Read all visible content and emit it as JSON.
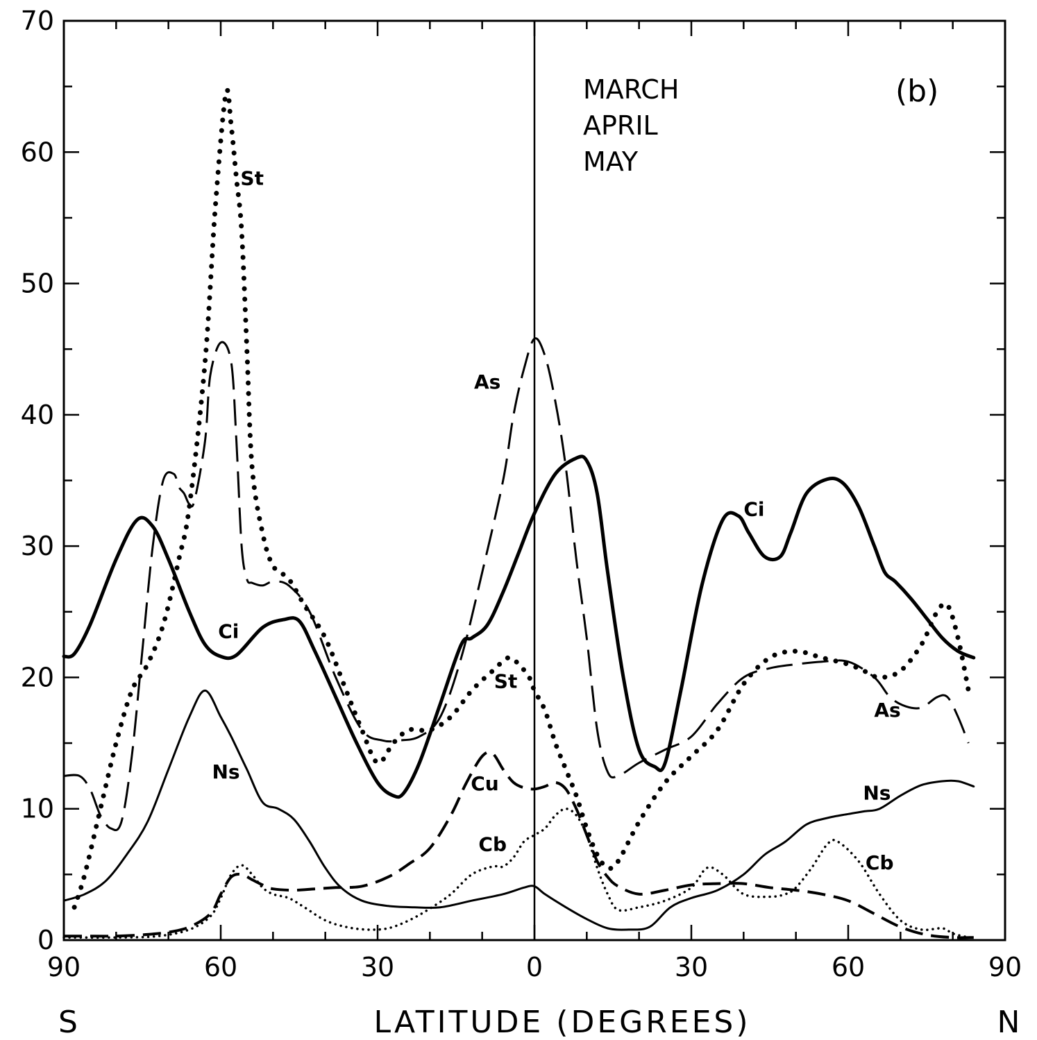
{
  "chart_data": {
    "type": "line",
    "panel_label": "(b)",
    "season": [
      "MARCH",
      "APRIL",
      "MAY"
    ],
    "xlabel": "LATITUDE (DEGREES)",
    "x_end_labels": {
      "left": "S",
      "right": "N"
    },
    "x_ticks": [
      -90,
      -60,
      -30,
      0,
      30,
      60,
      90
    ],
    "x_tick_labels": [
      "90",
      "60",
      "30",
      "0",
      "30",
      "60",
      "90"
    ],
    "y_ticks": [
      0,
      10,
      20,
      30,
      40,
      50,
      60,
      70
    ],
    "y_tick_labels": [
      "0",
      "10",
      "20",
      "30",
      "40",
      "50",
      "60",
      "70"
    ],
    "xlim": [
      -90,
      90
    ],
    "ylim": [
      0,
      70
    ],
    "reference_line_x": 0,
    "series": [
      {
        "name": "Ci",
        "style": "solid-thick",
        "x": [
          -90,
          -88,
          -85,
          -80,
          -76,
          -73,
          -70,
          -66,
          -63,
          -60,
          -57,
          -52,
          -48,
          -45,
          -42,
          -38,
          -34,
          -30,
          -27,
          -25,
          -22,
          -18,
          -14,
          -12,
          -9,
          -6,
          -3,
          0,
          4,
          8,
          10,
          12,
          14,
          17,
          20,
          23,
          25,
          28,
          32,
          36,
          39,
          41,
          44,
          47,
          49,
          52,
          56,
          59,
          62,
          65,
          67,
          69,
          72,
          75,
          78,
          81,
          84
        ],
        "y": [
          21.6,
          21.8,
          24,
          29,
          32,
          31.5,
          29,
          25,
          22.5,
          21.6,
          21.7,
          23.8,
          24.4,
          24.3,
          22,
          18.5,
          15,
          12,
          11,
          11.2,
          13.5,
          18,
          22.5,
          23,
          24,
          26.5,
          29.5,
          32.5,
          35.5,
          36.7,
          36.5,
          34,
          28,
          20,
          14.5,
          13.2,
          13.5,
          19,
          27,
          32,
          32.3,
          31,
          29.2,
          29.2,
          31,
          34,
          35.1,
          34.8,
          33,
          30,
          28,
          27.3,
          26,
          24.5,
          23,
          22,
          21.5
        ]
      },
      {
        "name": "St",
        "style": "dotted-heavy",
        "x": [
          -88,
          -86,
          -83,
          -80,
          -77,
          -74,
          -71,
          -68,
          -66,
          -63,
          -61,
          -59,
          -58,
          -57,
          -56,
          -55,
          -54,
          -52,
          -50,
          -47,
          -44,
          -40,
          -36,
          -33,
          -30,
          -27,
          -24,
          -20,
          -16,
          -12,
          -8,
          -5,
          -3,
          -1,
          0,
          2,
          4,
          6,
          8,
          10,
          12,
          14,
          16,
          20,
          25,
          30,
          35,
          40,
          45,
          50,
          55,
          60,
          63,
          66,
          70,
          74,
          77,
          79,
          81,
          83
        ],
        "y": [
          2.5,
          5,
          10,
          15,
          19,
          21,
          24,
          29,
          33,
          44,
          56,
          64.5,
          62,
          58,
          54,
          45,
          36,
          31,
          28.5,
          27.5,
          25.5,
          23,
          19,
          16,
          13.5,
          15,
          16,
          16,
          17,
          19,
          20.5,
          21.5,
          21,
          20,
          19,
          17.5,
          15,
          13,
          11,
          8.5,
          6.5,
          5.5,
          6,
          9,
          12,
          14,
          16,
          19.5,
          21.5,
          22,
          21.5,
          21,
          20.5,
          20,
          20.5,
          22.5,
          25,
          25.5,
          23,
          19
        ]
      },
      {
        "name": "As",
        "style": "dashed-long",
        "x": [
          -90,
          -87,
          -85,
          -83,
          -81,
          -79,
          -77,
          -75,
          -73,
          -71,
          -69,
          -68,
          -67,
          -66,
          -65,
          -63,
          -62,
          -60,
          -58,
          -57,
          -56,
          -55,
          -54,
          -52,
          -50,
          -47,
          -43,
          -38,
          -33,
          -29,
          -26,
          -22,
          -18,
          -14,
          -10,
          -6,
          -4,
          -2,
          0,
          2,
          4,
          6,
          8,
          10,
          12,
          14,
          16,
          20,
          25,
          30,
          35,
          40,
          45,
          50,
          55,
          60,
          65,
          68,
          71,
          74,
          77,
          79,
          81,
          83
        ],
        "y": [
          12.5,
          12.5,
          11.5,
          9.5,
          8.5,
          9,
          14,
          22,
          30,
          35,
          35.5,
          34.5,
          34,
          33.2,
          33.5,
          38,
          43,
          45.5,
          44,
          38,
          30,
          27.5,
          27.2,
          27,
          27.3,
          27,
          25,
          20,
          16,
          15.2,
          15.2,
          15.5,
          17,
          21.5,
          28,
          35,
          40,
          43.5,
          45.8,
          44.5,
          41,
          36,
          29,
          23,
          16,
          12.8,
          12.5,
          13.5,
          14.5,
          15.5,
          18,
          20,
          20.7,
          21,
          21.2,
          21.2,
          20,
          18.5,
          17.8,
          17.7,
          18.5,
          18.5,
          17,
          15
        ]
      },
      {
        "name": "Ns",
        "style": "solid-thin",
        "x": [
          -90,
          -86,
          -82,
          -78,
          -74,
          -70,
          -66,
          -63,
          -60,
          -58,
          -55,
          -52,
          -49,
          -46,
          -43,
          -40,
          -37,
          -33,
          -28,
          -23,
          -18,
          -12,
          -6,
          -2,
          0,
          2,
          6,
          10,
          14,
          18,
          22,
          26,
          30,
          35,
          40,
          44,
          48,
          52,
          56,
          60,
          63,
          66,
          70,
          74,
          78,
          81,
          84
        ],
        "y": [
          3,
          3.5,
          4.5,
          6.5,
          9,
          13,
          17,
          19,
          17,
          15.5,
          13,
          10.5,
          10,
          9.2,
          7.5,
          5.5,
          4,
          3,
          2.6,
          2.5,
          2.5,
          3,
          3.5,
          4,
          4.1,
          3.5,
          2.5,
          1.6,
          0.9,
          0.8,
          1,
          2.5,
          3.2,
          3.8,
          5,
          6.5,
          7.5,
          8.8,
          9.3,
          9.6,
          9.8,
          10,
          11,
          11.8,
          12.1,
          12.1,
          11.7
        ]
      },
      {
        "name": "Cu",
        "style": "dashed-medium",
        "x": [
          -90,
          -85,
          -80,
          -75,
          -70,
          -66,
          -62,
          -60,
          -58,
          -56,
          -54,
          -52,
          -50,
          -46,
          -42,
          -38,
          -33,
          -28,
          -24,
          -20,
          -16,
          -13,
          -10,
          -8,
          -6,
          -4,
          -2,
          0,
          2,
          4,
          6,
          8,
          10,
          12,
          14,
          16,
          20,
          25,
          30,
          35,
          40,
          45,
          50,
          55,
          60,
          65,
          70,
          75,
          80,
          84
        ],
        "y": [
          0.3,
          0.3,
          0.3,
          0.4,
          0.6,
          1,
          2,
          3.5,
          4.8,
          5,
          4.6,
          4.2,
          3.9,
          3.8,
          3.9,
          4,
          4.1,
          4.8,
          5.8,
          7,
          9.5,
          12,
          14,
          14.2,
          13,
          12,
          11.6,
          11.5,
          11.7,
          12,
          11.5,
          10,
          8,
          6,
          4.8,
          4.1,
          3.5,
          3.8,
          4.2,
          4.3,
          4.3,
          4,
          3.8,
          3.5,
          3,
          2,
          1,
          0.4,
          0.2,
          0.2
        ]
      },
      {
        "name": "Cb",
        "style": "dotted-light",
        "x": [
          -90,
          -80,
          -72,
          -66,
          -62,
          -60,
          -58,
          -56,
          -54,
          -52,
          -50,
          -47,
          -44,
          -40,
          -36,
          -32,
          -28,
          -24,
          -20,
          -16,
          -12,
          -8,
          -6,
          -4,
          -2,
          0,
          2,
          4,
          6,
          8,
          10,
          12,
          14,
          16,
          20,
          25,
          30,
          33,
          36,
          40,
          45,
          48,
          50,
          53,
          56,
          58,
          62,
          66,
          70,
          74,
          78,
          80,
          83
        ],
        "y": [
          0.2,
          0.2,
          0.3,
          0.8,
          1.8,
          3.2,
          5,
          5.7,
          5,
          4,
          3.5,
          3.2,
          2.5,
          1.5,
          1,
          0.8,
          0.9,
          1.5,
          2.4,
          3.5,
          5,
          5.6,
          5.6,
          6.3,
          7.5,
          8,
          8.5,
          9.5,
          10,
          9.5,
          8,
          5.5,
          3.5,
          2.3,
          2.5,
          3,
          4,
          5.5,
          5,
          3.5,
          3.3,
          3.5,
          4,
          5.5,
          7.3,
          7.5,
          6,
          3.5,
          1.5,
          0.8,
          0.9,
          0.5,
          0.2
        ]
      }
    ],
    "annotations": [
      {
        "text": "St",
        "x": -54,
        "y": 57.5
      },
      {
        "text": "Ci",
        "x": -58.5,
        "y": 23
      },
      {
        "text": "Ns",
        "x": -59,
        "y": 12.3
      },
      {
        "text": "As",
        "x": -9,
        "y": 42
      },
      {
        "text": "St",
        "x": -5.5,
        "y": 19.2
      },
      {
        "text": "Cu",
        "x": -9.5,
        "y": 11.4
      },
      {
        "text": "Cb",
        "x": -8,
        "y": 6.8
      },
      {
        "text": "Ci",
        "x": 42,
        "y": 32.3
      },
      {
        "text": "As",
        "x": 67.5,
        "y": 17
      },
      {
        "text": "Ns",
        "x": 65.5,
        "y": 10.7
      },
      {
        "text": "Cb",
        "x": 66,
        "y": 5.4
      }
    ]
  }
}
